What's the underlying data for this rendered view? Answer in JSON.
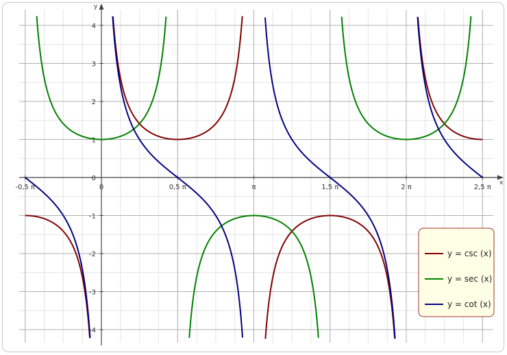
{
  "chart_data": {
    "type": "line",
    "title": "",
    "xlabel": "x",
    "ylabel": "y",
    "xlim": [
      -1.5708,
      7.854
    ],
    "ylim": [
      -4.2,
      4.3
    ],
    "grid": true,
    "legend_position": "bottom-right",
    "x_ticks": [
      {
        "value": -1.5708,
        "label": "-0,5 π"
      },
      {
        "value": 0,
        "label": "0"
      },
      {
        "value": 1.5708,
        "label": "0,5 π"
      },
      {
        "value": 3.1416,
        "label": "π"
      },
      {
        "value": 4.7124,
        "label": "1,5 π"
      },
      {
        "value": 6.2832,
        "label": "2 π"
      },
      {
        "value": 7.854,
        "label": "2,5 π"
      }
    ],
    "y_ticks": [
      {
        "value": -4,
        "label": "-4"
      },
      {
        "value": -3,
        "label": "-3"
      },
      {
        "value": -2,
        "label": "-2"
      },
      {
        "value": -1,
        "label": "-1"
      },
      {
        "value": 0,
        "label": "0"
      },
      {
        "value": 1,
        "label": "1"
      },
      {
        "value": 2,
        "label": "2"
      },
      {
        "value": 3,
        "label": "3"
      },
      {
        "value": 4,
        "label": "4"
      }
    ],
    "series": [
      {
        "name": "y = csc (x)",
        "function": "csc",
        "color": "#800000"
      },
      {
        "name": "y = sec (x)",
        "function": "sec",
        "color": "#008000"
      },
      {
        "name": "y = cot (x)",
        "function": "cot",
        "color": "#000080"
      }
    ]
  }
}
